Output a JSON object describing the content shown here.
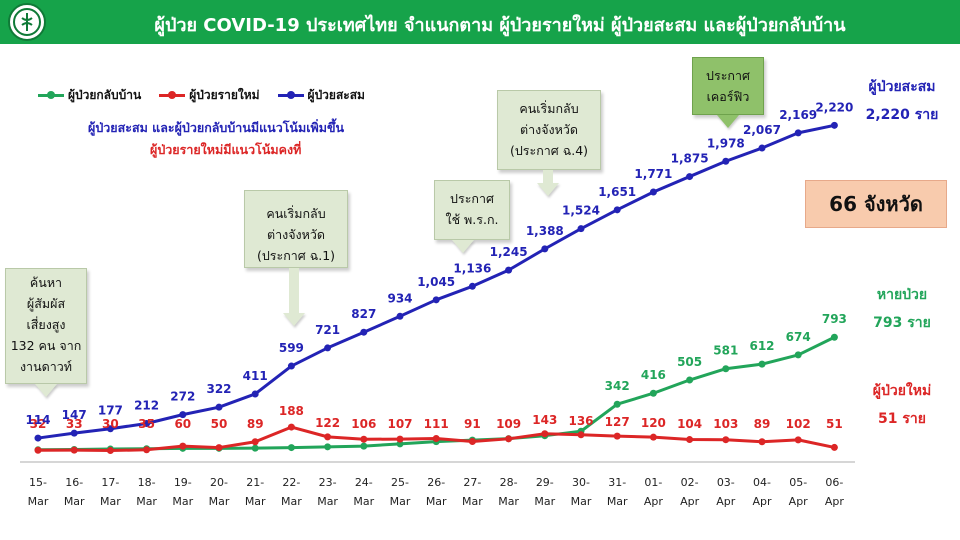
{
  "header": {
    "title": "ผู้ป่วย COVID-19 ประเทศไทย จำแนกตาม ผู้ป่วยรายใหม่ ผู้ป่วยสะสม  และผู้ป่วยกลับบ้าน",
    "logo_icon": "ministry-of-public-health-logo-icon",
    "bar_color": "#16a34a"
  },
  "notes": {
    "line1": "ผู้ป่วยสะสม  และผู้ป่วยกลับบ้านมีแนวโน้มเพิ่มขึ้น",
    "line2": "ผู้ป่วยรายใหม่มีแนวโน้มคงที่"
  },
  "callouts": [
    {
      "lines": [
        "ค้นหา",
        "ผู้สัมผัส",
        "เสี่ยงสูง",
        "132 คน จาก",
        "งานดาวท์"
      ]
    },
    {
      "lines": [
        "คนเริ่มกลับ",
        "ต่างจังหวัด",
        "(ประกาศ ฉ.1)"
      ]
    },
    {
      "lines": [
        "ประกาศ",
        "ใช้ พ.ร.ก."
      ]
    },
    {
      "lines": [
        "คนเริ่มกลับ",
        "ต่างจังหวัด",
        "(ประกาศ ฉ.4)"
      ]
    },
    {
      "lines": [
        "ประกาศ",
        "เคอร์ฟิว"
      ]
    }
  ],
  "right_labels": {
    "cumulative_title": "ผู้ป่วยสะสม",
    "cumulative_value": "2,220 ราย",
    "recovered_title": "หายป่วย",
    "recovered_value": "793 ราย",
    "new_title": "ผู้ป่วยใหม่",
    "new_value": "51 ราย",
    "provinces": "66 จังหวัด"
  },
  "chart_data": {
    "type": "line",
    "categories": [
      [
        "15-",
        "Mar"
      ],
      [
        "16-",
        "Mar"
      ],
      [
        "17-",
        "Mar"
      ],
      [
        "18-",
        "Mar"
      ],
      [
        "19-",
        "Mar"
      ],
      [
        "20-",
        "Mar"
      ],
      [
        "21-",
        "Mar"
      ],
      [
        "22-",
        "Mar"
      ],
      [
        "23-",
        "Mar"
      ],
      [
        "24-",
        "Mar"
      ],
      [
        "25-",
        "Mar"
      ],
      [
        "26-",
        "Mar"
      ],
      [
        "27-",
        "Mar"
      ],
      [
        "28-",
        "Mar"
      ],
      [
        "29-",
        "Mar"
      ],
      [
        "30-",
        "Mar"
      ],
      [
        "31-",
        "Mar"
      ],
      [
        "01-",
        "Apr"
      ],
      [
        "02-",
        "Apr"
      ],
      [
        "03-",
        "Apr"
      ],
      [
        "04-",
        "Apr"
      ],
      [
        "05-",
        "Apr"
      ],
      [
        "06-",
        "Apr"
      ]
    ],
    "series": [
      {
        "name": "ผู้ป่วยกลับบ้าน",
        "color": "#22a55a",
        "values": [
          35,
          37,
          40,
          42,
          45,
          45,
          46,
          50,
          55,
          60,
          75,
          90,
          100,
          110,
          130,
          160,
          342,
          416,
          505,
          581,
          612,
          674,
          793
        ],
        "labels": [
          "",
          "",
          "",
          "",
          "",
          "",
          "",
          "",
          "",
          "",
          "",
          "",
          "",
          "",
          "",
          "",
          "342",
          "416",
          "505",
          "581",
          "612",
          "674",
          "793"
        ]
      },
      {
        "name": "ผู้ป่วยรายใหม่",
        "color": "#dc2626",
        "values": [
          32,
          33,
          30,
          35,
          60,
          50,
          89,
          188,
          122,
          106,
          107,
          111,
          91,
          109,
          143,
          136,
          127,
          120,
          104,
          103,
          89,
          102,
          51
        ],
        "labels": [
          "32",
          "33",
          "30",
          "35",
          "60",
          "50",
          "89",
          "188",
          "122",
          "106",
          "107",
          "111",
          "91",
          "109",
          "143",
          "136",
          "127",
          "120",
          "104",
          "103",
          "89",
          "102",
          "51"
        ]
      },
      {
        "name": "ผู้ป่วยสะสม",
        "color": "#2323b5",
        "values": [
          114,
          147,
          177,
          212,
          272,
          322,
          411,
          599,
          721,
          827,
          934,
          1045,
          1136,
          1245,
          1388,
          1524,
          1651,
          1771,
          1875,
          1978,
          2067,
          2169,
          2220
        ],
        "labels": [
          "114",
          "147",
          "177",
          "212",
          "272",
          "322",
          "411",
          "599",
          "721",
          "827",
          "934",
          "1,045",
          "1,136",
          "1,245",
          "1,388",
          "1,524",
          "1,651",
          "1,771",
          "1,875",
          "1,978",
          "2,067",
          "2,169",
          "2,220"
        ]
      }
    ],
    "ylim": [
      0,
      2400
    ]
  }
}
